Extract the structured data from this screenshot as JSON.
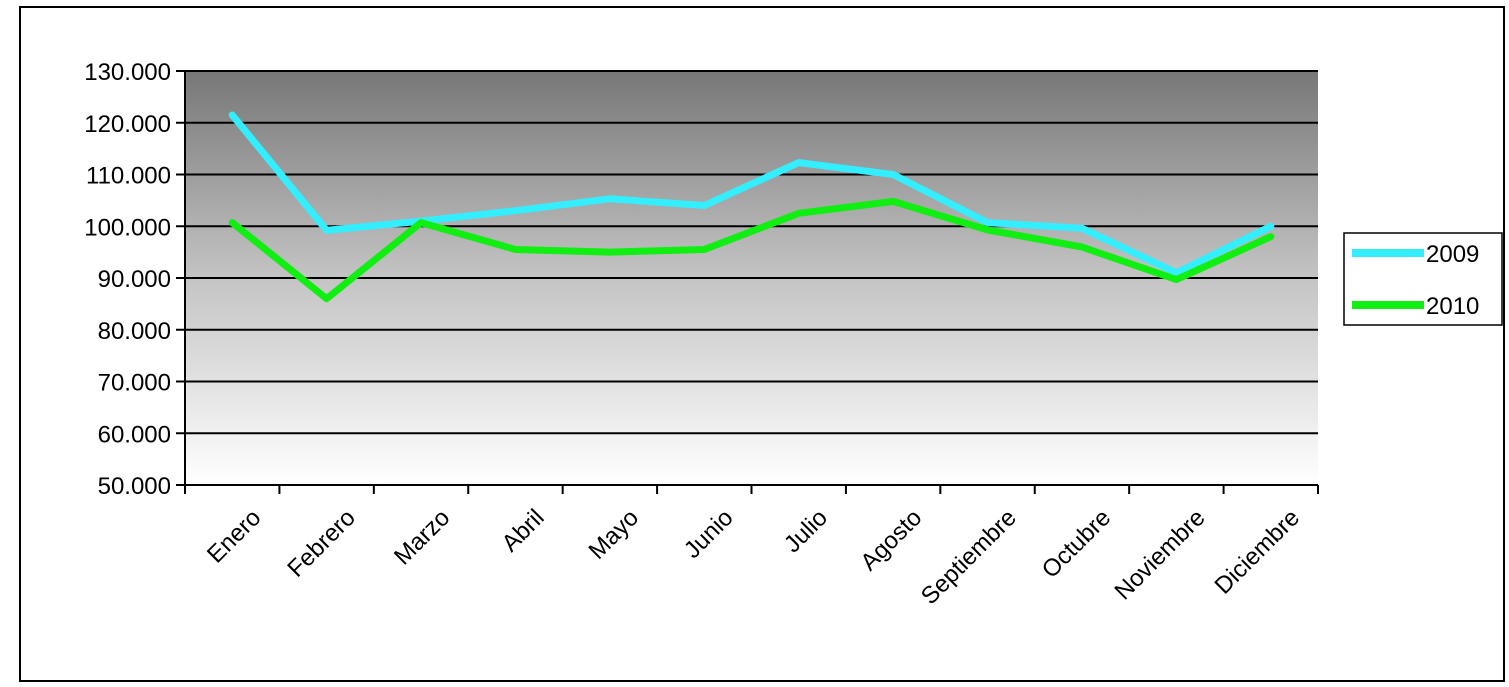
{
  "chart_data": {
    "type": "line",
    "title": "",
    "xlabel": "",
    "ylabel": "",
    "categories": [
      "Enero",
      "Febrero",
      "Marzo",
      "Abril",
      "Mayo",
      "Junio",
      "Julio",
      "Agosto",
      "Septiembre",
      "Octubre",
      "Noviembre",
      "Diciembre"
    ],
    "ylim": [
      50000,
      130000
    ],
    "yticks": [
      50000,
      60000,
      70000,
      80000,
      90000,
      100000,
      110000,
      120000,
      130000
    ],
    "ytick_labels": [
      "50.000",
      "60.000",
      "70.000",
      "80.000",
      "90.000",
      "100.000",
      "110.000",
      "120.000",
      "130.000"
    ],
    "grid": true,
    "legend_position": "right",
    "plot_background": "gradient gray (dark top to white bottom)",
    "series": [
      {
        "name": "2009",
        "color": "#33eeff",
        "values": [
          121500,
          99200,
          101000,
          103000,
          105300,
          104000,
          112300,
          110000,
          100700,
          99600,
          91000,
          100000
        ]
      },
      {
        "name": "2010",
        "color": "#11ee11",
        "values": [
          100700,
          86000,
          100700,
          95500,
          95000,
          95500,
          102500,
          104800,
          99300,
          96000,
          89700,
          98000
        ]
      }
    ]
  }
}
